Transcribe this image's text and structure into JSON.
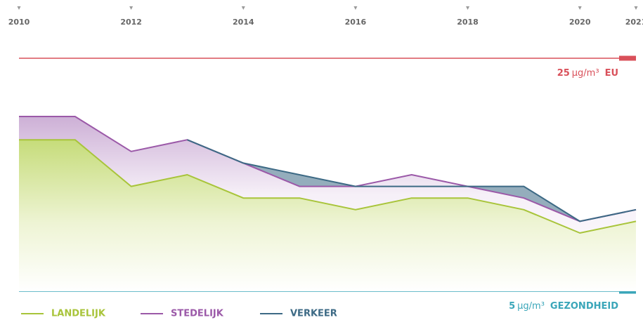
{
  "chart_data": {
    "type": "area",
    "x": [
      2010,
      2011,
      2012,
      2013,
      2014,
      2015,
      2016,
      2017,
      2018,
      2019,
      2020,
      2021
    ],
    "xlim": [
      2010,
      2021
    ],
    "xticks": [
      2010,
      2012,
      2014,
      2016,
      2018,
      2020,
      2021
    ],
    "ylim": [
      5,
      25
    ],
    "series": [
      {
        "name": "LANDELIJK",
        "color": "#a8c43a",
        "values": [
          18,
          18,
          14,
          15,
          13,
          13,
          12,
          13,
          13,
          12,
          10,
          11
        ]
      },
      {
        "name": "STEDELIJK",
        "color": "#9b59a8",
        "values": [
          20,
          20,
          17,
          18,
          16,
          14,
          14,
          15,
          14,
          13,
          11,
          12
        ]
      },
      {
        "name": "VERKEER",
        "color": "#3d6a85",
        "values": [
          null,
          null,
          null,
          18,
          16,
          15,
          14,
          14,
          14,
          14,
          11,
          12
        ]
      }
    ],
    "reference_lines": [
      {
        "value": 25,
        "unit": "µg/m³",
        "label": "EU",
        "color": "#d9505a"
      },
      {
        "value": 5,
        "unit": "µg/m³",
        "label": "GEZONDHEID",
        "color": "#3aa6b9"
      }
    ],
    "legend": "bottom-left"
  }
}
